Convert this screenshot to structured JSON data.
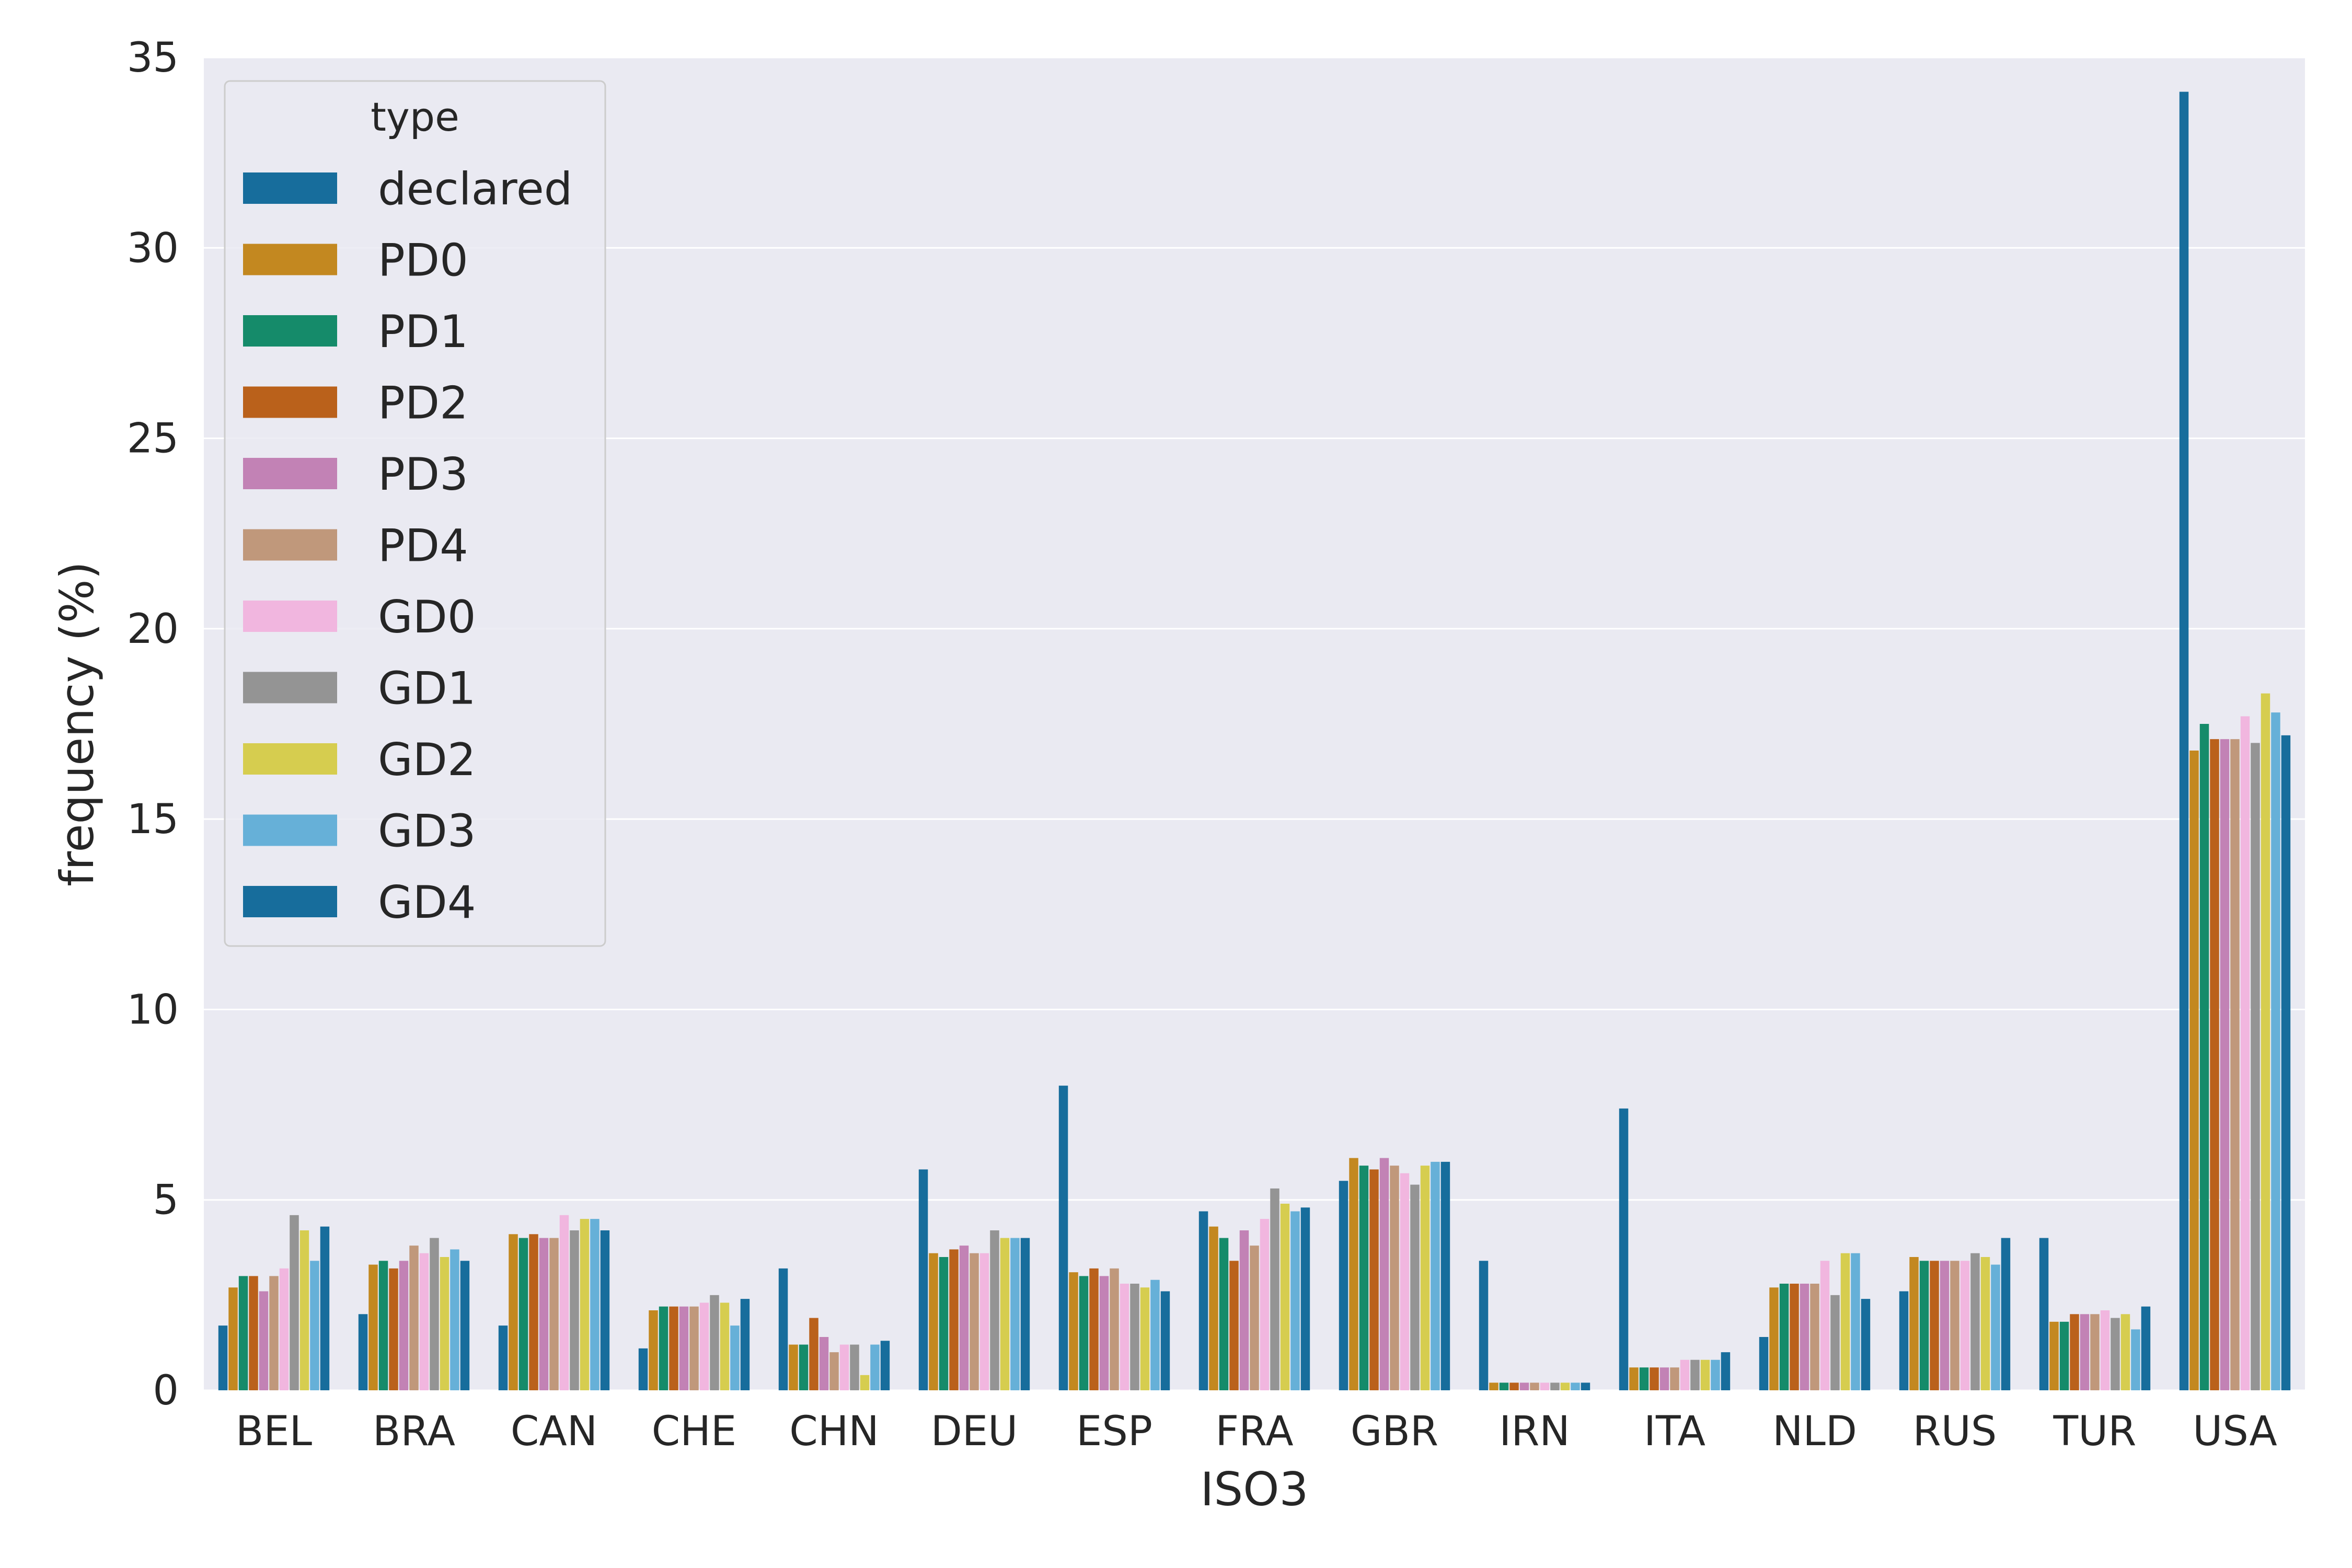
{
  "chart_data": {
    "type": "bar",
    "xlabel": "ISO3",
    "ylabel": "frequency (%)",
    "ylim": [
      0,
      35
    ],
    "yticks": [
      0,
      5,
      10,
      15,
      20,
      25,
      30,
      35
    ],
    "grid": true,
    "legend_title": "type",
    "legend_position": "top-left",
    "categories": [
      "BEL",
      "BRA",
      "CAN",
      "CHE",
      "CHN",
      "DEU",
      "ESP",
      "FRA",
      "GBR",
      "IRN",
      "ITA",
      "NLD",
      "RUS",
      "TUR",
      "USA"
    ],
    "series": [
      {
        "name": "declared",
        "color": "#176D9C",
        "values": [
          1.7,
          2.0,
          1.7,
          1.1,
          3.2,
          5.8,
          8.0,
          4.7,
          5.5,
          3.4,
          7.4,
          1.4,
          2.6,
          4.0,
          34.1
        ]
      },
      {
        "name": "PD0",
        "color": "#C38820",
        "values": [
          2.7,
          3.3,
          4.1,
          2.1,
          1.2,
          3.6,
          3.1,
          4.3,
          6.1,
          0.2,
          0.6,
          2.7,
          3.5,
          1.8,
          16.8
        ]
      },
      {
        "name": "PD1",
        "color": "#158B6A",
        "values": [
          3.0,
          3.4,
          4.0,
          2.2,
          1.2,
          3.5,
          3.0,
          4.0,
          5.9,
          0.2,
          0.6,
          2.8,
          3.4,
          1.8,
          17.5
        ]
      },
      {
        "name": "PD2",
        "color": "#BA611B",
        "values": [
          3.0,
          3.2,
          4.1,
          2.2,
          1.9,
          3.7,
          3.2,
          3.4,
          5.8,
          0.2,
          0.6,
          2.8,
          3.4,
          2.0,
          17.1
        ]
      },
      {
        "name": "PD3",
        "color": "#C282B5",
        "values": [
          2.6,
          3.4,
          4.0,
          2.2,
          1.4,
          3.8,
          3.0,
          4.2,
          6.1,
          0.2,
          0.6,
          2.8,
          3.4,
          2.0,
          17.1
        ]
      },
      {
        "name": "PD4",
        "color": "#C0987B",
        "values": [
          3.0,
          3.8,
          4.0,
          2.2,
          1.0,
          3.6,
          3.2,
          3.8,
          5.9,
          0.2,
          0.6,
          2.8,
          3.4,
          2.0,
          17.1
        ]
      },
      {
        "name": "GD0",
        "color": "#F1B6DF",
        "values": [
          3.2,
          3.6,
          4.6,
          2.3,
          1.2,
          3.6,
          2.8,
          4.5,
          5.7,
          0.2,
          0.8,
          3.4,
          3.4,
          2.1,
          17.7
        ]
      },
      {
        "name": "GD1",
        "color": "#949494",
        "values": [
          4.6,
          4.0,
          4.2,
          2.5,
          1.2,
          4.2,
          2.8,
          5.3,
          5.4,
          0.2,
          0.8,
          2.5,
          3.6,
          1.9,
          17.0
        ]
      },
      {
        "name": "GD2",
        "color": "#D6CD4F",
        "values": [
          4.2,
          3.5,
          4.5,
          2.3,
          0.4,
          4.0,
          2.7,
          4.9,
          5.9,
          0.2,
          0.8,
          3.6,
          3.5,
          2.0,
          18.3
        ]
      },
      {
        "name": "GD3",
        "color": "#66B0D8",
        "values": [
          3.4,
          3.7,
          4.5,
          1.7,
          1.2,
          4.0,
          2.9,
          4.7,
          6.0,
          0.2,
          0.8,
          3.6,
          3.3,
          1.6,
          17.8
        ]
      },
      {
        "name": "GD4",
        "color": "#176D9C",
        "values": [
          4.3,
          3.4,
          4.2,
          2.4,
          1.3,
          4.0,
          2.6,
          4.8,
          6.0,
          0.2,
          1.0,
          2.4,
          4.0,
          2.2,
          17.2
        ]
      }
    ]
  }
}
